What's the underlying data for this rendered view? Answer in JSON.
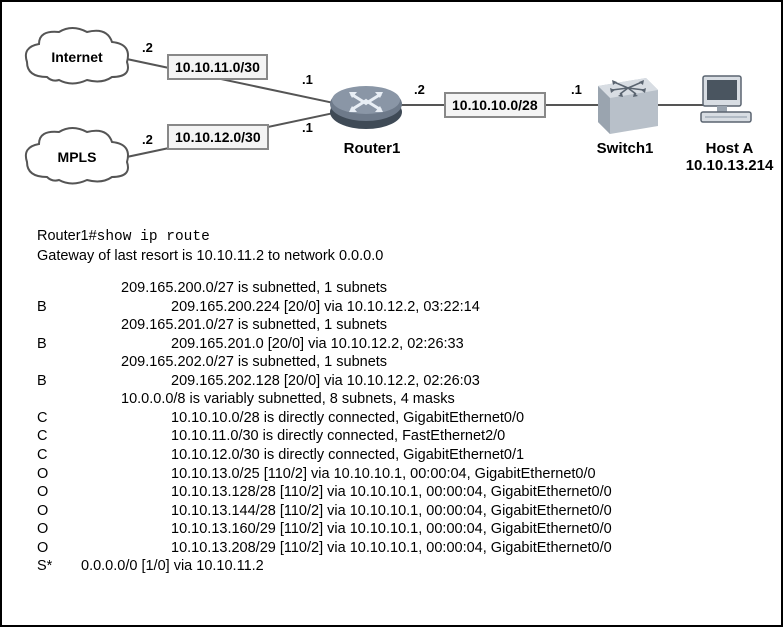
{
  "diagram": {
    "clouds": {
      "internet": {
        "label": "Internet",
        "ip_suffix": ".2"
      },
      "mpls": {
        "label": "MPLS",
        "ip_suffix": ".2"
      }
    },
    "subnets": {
      "internet_link": "10.10.11.0/30",
      "mpls_link": "10.10.12.0/30",
      "router_switch": "10.10.10.0/28"
    },
    "router": {
      "name": "Router1",
      "if_internet": ".1",
      "if_mpls": ".1",
      "if_lan": ".2"
    },
    "switch": {
      "name": "Switch1",
      "if_uplink": ".1"
    },
    "host": {
      "name": "Host A",
      "ip": "10.10.13.214"
    },
    "colors": {
      "line": "#555555",
      "box_border": "#888888",
      "box_bg": "#f4f4f4",
      "router_body": "#6e7a8a",
      "router_rim": "#3f4a56",
      "switch_face": "#d8dde3"
    }
  },
  "terminal": {
    "prompt_host": "Router1#",
    "prompt_cmd": "show ip route",
    "gateway_line": "Gateway of last resort is 10.10.11.2 to network 0.0.0.0",
    "routes": [
      {
        "code": "",
        "indent": 1,
        "text": "209.165.200.0/27 is subnetted, 1 subnets"
      },
      {
        "code": "B",
        "indent": 2,
        "text": "209.165.200.224 [20/0] via 10.10.12.2, 03:22:14"
      },
      {
        "code": "",
        "indent": 1,
        "text": "209.165.201.0/27 is subnetted, 1 subnets"
      },
      {
        "code": "B",
        "indent": 2,
        "text": "209.165.201.0 [20/0] via 10.10.12.2, 02:26:33"
      },
      {
        "code": "",
        "indent": 1,
        "text": "209.165.202.0/27 is subnetted, 1 subnets"
      },
      {
        "code": "B",
        "indent": 2,
        "text": "209.165.202.128 [20/0] via 10.10.12.2, 02:26:03"
      },
      {
        "code": "",
        "indent": 1,
        "text": "10.0.0.0/8 is variably subnetted, 8 subnets, 4 masks"
      },
      {
        "code": "C",
        "indent": 2,
        "text": "10.10.10.0/28 is directly connected, GigabitEthernet0/0"
      },
      {
        "code": "C",
        "indent": 2,
        "text": "10.10.11.0/30 is directly connected, FastEthernet2/0"
      },
      {
        "code": "C",
        "indent": 2,
        "text": "10.10.12.0/30 is directly connected, GigabitEthernet0/1"
      },
      {
        "code": "O",
        "indent": 2,
        "text": "10.10.13.0/25 [110/2] via 10.10.10.1, 00:00:04, GigabitEthernet0/0"
      },
      {
        "code": "O",
        "indent": 2,
        "text": "10.10.13.128/28 [110/2] via 10.10.10.1, 00:00:04, GigabitEthernet0/0"
      },
      {
        "code": "O",
        "indent": 2,
        "text": "10.10.13.144/28 [110/2] via 10.10.10.1, 00:00:04, GigabitEthernet0/0"
      },
      {
        "code": "O",
        "indent": 2,
        "text": "10.10.13.160/29 [110/2] via 10.10.10.1, 00:00:04, GigabitEthernet0/0"
      },
      {
        "code": "O",
        "indent": 2,
        "text": "10.10.13.208/29 [110/2] via 10.10.10.1, 00:00:04, GigabitEthernet0/0"
      },
      {
        "code": "S*",
        "indent": 0,
        "text": "0.0.0.0/0 [1/0] via 10.10.11.2"
      }
    ]
  }
}
